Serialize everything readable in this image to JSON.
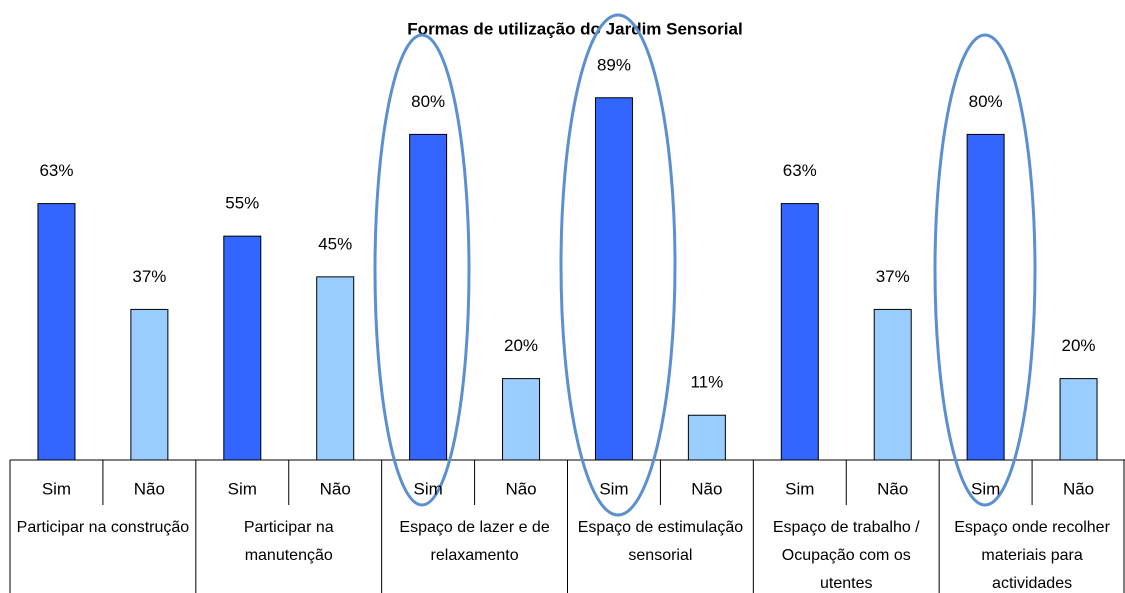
{
  "chart_data": {
    "type": "bar",
    "title": "Formas de utilização do Jardim Sensorial",
    "categories": [
      "Participar na construção",
      "Participar na manutenção",
      "Espaço de lazer e de relaxamento",
      "Espaço de estimulação sensorial",
      "Espaço de trabalho / Ocupação com os utentes",
      "Espaço onde recolher materiais para actividades"
    ],
    "series": [
      {
        "name": "Sim",
        "color": "#3366ff",
        "values": [
          63,
          55,
          80,
          89,
          63,
          80
        ],
        "value_labels": [
          "63%",
          "55%",
          "80%",
          "89%",
          "63%",
          "80%"
        ]
      },
      {
        "name": "Não",
        "color": "#99ccff",
        "values": [
          37,
          45,
          20,
          11,
          37,
          20
        ],
        "value_labels": [
          "37%",
          "45%",
          "20%",
          "11%",
          "37%",
          "20%"
        ]
      }
    ]
  }
}
